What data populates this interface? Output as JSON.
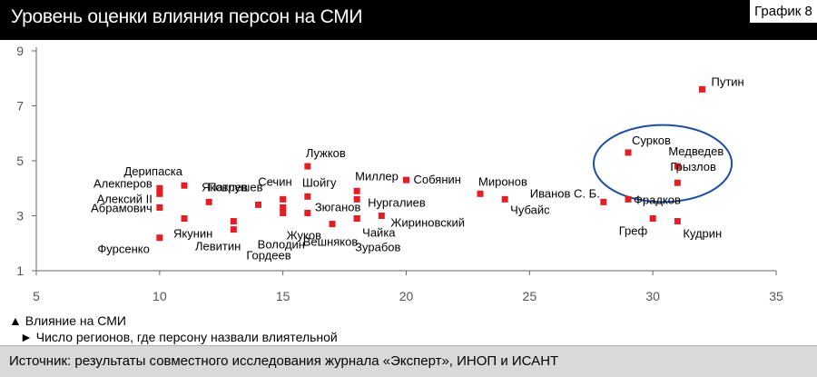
{
  "header": {
    "title": "Уровень оценки влияния персон на СМИ",
    "label": "График 8"
  },
  "legend": {
    "y_item": "▲ Влияние на СМИ",
    "x_item": "► Число регионов, где персону назвали влиятельной"
  },
  "source": "Источник: результаты совместного исследования журнала «Эксперт», ИНОП и ИСАНТ",
  "colors": {
    "point": "#e31e24",
    "ellipse": "#1f4fa0",
    "axis": "#666666",
    "header_bg": "#000000",
    "footer_bg": "#d9d9d9"
  },
  "chart_data": {
    "type": "scatter",
    "title": "Уровень оценки влияния персон на СМИ",
    "xlabel": "Число регионов, где персону назвали влиятельной",
    "ylabel": "Влияние на СМИ",
    "xlim": [
      5,
      35
    ],
    "ylim": [
      1,
      9
    ],
    "xticks": [
      5,
      10,
      15,
      20,
      25,
      30,
      35
    ],
    "yticks": [
      1,
      3,
      5,
      7,
      9
    ],
    "grid": false,
    "points": [
      {
        "name": "Путин",
        "x": 32,
        "y": 7.6
      },
      {
        "name": "Сурков",
        "x": 29,
        "y": 5.3
      },
      {
        "name": "Медведев",
        "x": 31,
        "y": 4.8
      },
      {
        "name": "Грызлов",
        "x": 31,
        "y": 4.2
      },
      {
        "name": "Фрадков",
        "x": 29,
        "y": 3.6
      },
      {
        "name": "Иванов С. Б.",
        "x": 28,
        "y": 3.5
      },
      {
        "name": "Греф",
        "x": 30,
        "y": 2.9
      },
      {
        "name": "Кудрин",
        "x": 31,
        "y": 2.8
      },
      {
        "name": "Миронов",
        "x": 23,
        "y": 3.8
      },
      {
        "name": "Чубайс",
        "x": 24,
        "y": 3.6
      },
      {
        "name": "Собянин",
        "x": 20,
        "y": 4.3
      },
      {
        "name": "Миллер",
        "x": 18,
        "y": 3.9
      },
      {
        "name": "Нургалиев",
        "x": 18,
        "y": 3.6
      },
      {
        "name": "Жириновский",
        "x": 19,
        "y": 3.0
      },
      {
        "name": "Чайка",
        "x": 18,
        "y": 2.9
      },
      {
        "name": "Зурабов",
        "x": 18,
        "y": 2.9
      },
      {
        "name": "Вешняков",
        "x": 17,
        "y": 2.7
      },
      {
        "name": "Лужков",
        "x": 16,
        "y": 4.8
      },
      {
        "name": "Шойгу",
        "x": 16,
        "y": 3.7
      },
      {
        "name": "Зюганов",
        "x": 16,
        "y": 3.1
      },
      {
        "name": "Сечин",
        "x": 15,
        "y": 3.6
      },
      {
        "name": "Жуков",
        "x": 15,
        "y": 3.1
      },
      {
        "name": "Володин",
        "x": 15,
        "y": 3.3
      },
      {
        "name": "Патрушев",
        "x": 14,
        "y": 3.4
      },
      {
        "name": "Левитин",
        "x": 13,
        "y": 2.8
      },
      {
        "name": "Гордеев",
        "x": 13,
        "y": 2.5
      },
      {
        "name": "Яковлев",
        "x": 12,
        "y": 3.5
      },
      {
        "name": "Дерипаска",
        "x": 11,
        "y": 4.1
      },
      {
        "name": "Якунин",
        "x": 11,
        "y": 2.9
      },
      {
        "name": "Алекперов",
        "x": 10,
        "y": 4.0
      },
      {
        "name": "Алексий II",
        "x": 10,
        "y": 3.8
      },
      {
        "name": "Абрамович",
        "x": 10,
        "y": 3.3
      },
      {
        "name": "Фурсенко",
        "x": 10,
        "y": 2.2
      }
    ],
    "highlight": {
      "shape": "ellipse",
      "x_center": 30.4,
      "y_center": 4.9,
      "x_radius": 2.8,
      "y_radius": 1.4
    }
  }
}
